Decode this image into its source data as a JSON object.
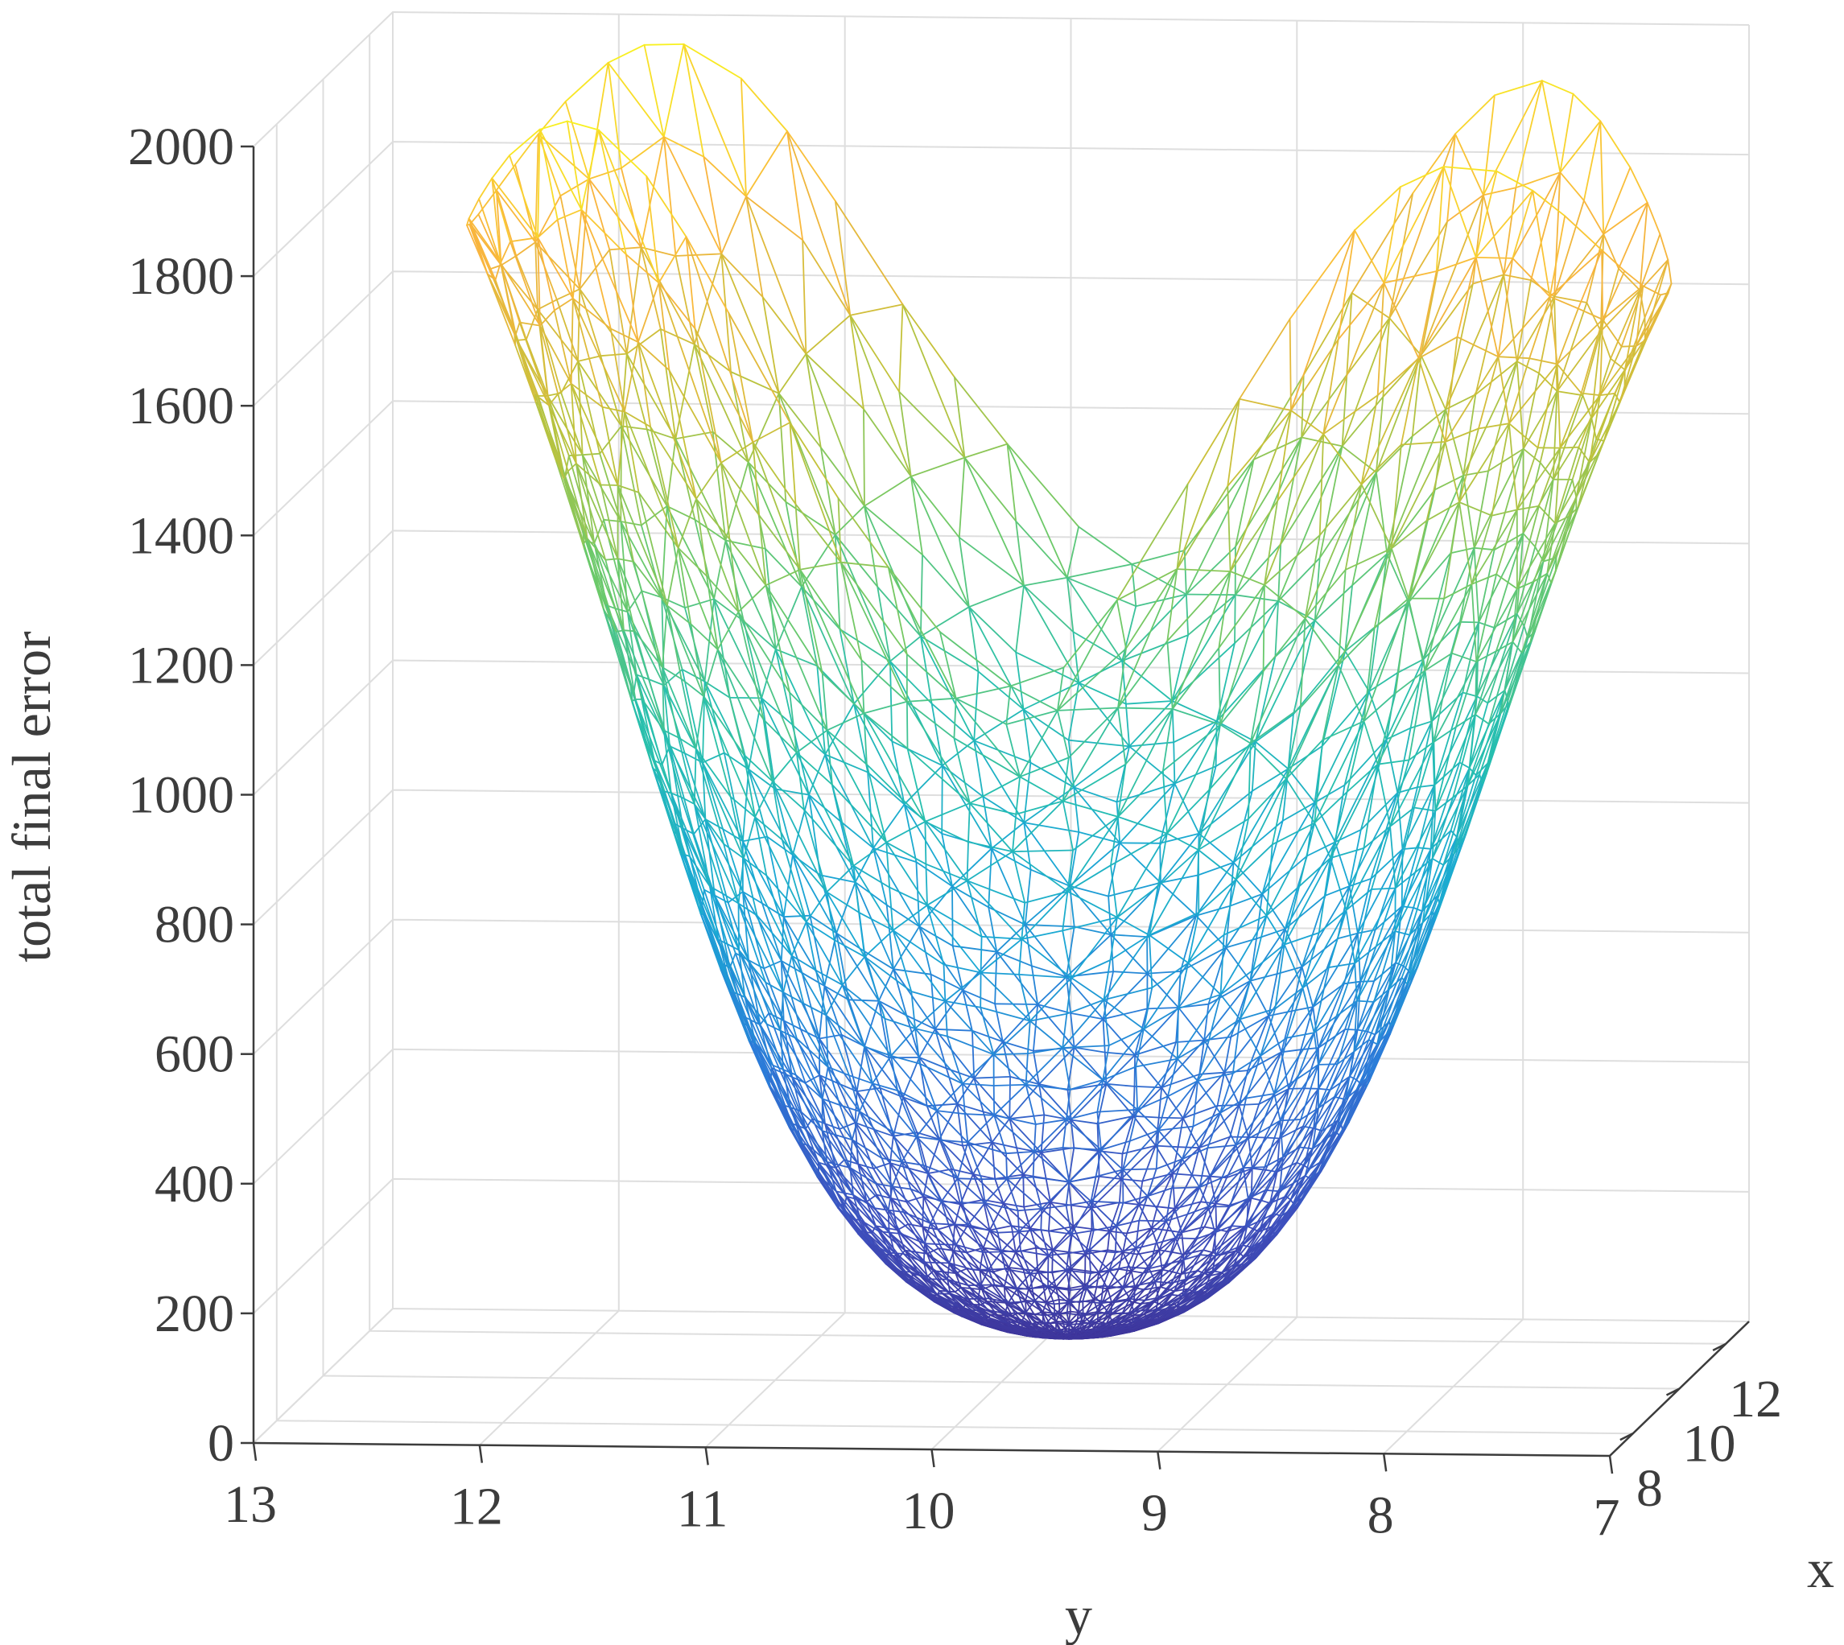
{
  "chart_data": {
    "type": "surface-mesh",
    "title": "",
    "xlabel": "x",
    "ylabel": "y",
    "zlabel": "total final error",
    "x_ticks": [
      8,
      10,
      12
    ],
    "y_ticks": [
      13,
      12,
      11,
      10,
      9,
      8,
      7
    ],
    "z_ticks": [
      0,
      200,
      400,
      600,
      800,
      1000,
      1200,
      1400,
      1600,
      1800,
      2000
    ],
    "xlim": [
      7,
      13
    ],
    "ylim": [
      7,
      13
    ],
    "zlim": [
      0,
      2000
    ],
    "grid": true,
    "colormap": [
      "#3e2a8c",
      "#3d4fbd",
      "#2b7bd8",
      "#1aa8d4",
      "#27bfae",
      "#6cc96a",
      "#c2c23a",
      "#f9b43e",
      "#f8f21f"
    ],
    "surface": {
      "shape": "double-lobed funnel",
      "minimum": {
        "x": 10,
        "y": 9.7,
        "z": 70
      },
      "left_lobe_peak": {
        "x": 10,
        "y": 11.7,
        "z": 2000
      },
      "right_lobe_peak": {
        "x": 10,
        "y": 7.8,
        "z": 1950
      },
      "saddle": {
        "x": 10,
        "y": 9.6,
        "z": 1420
      },
      "rim_min_z": 1250
    }
  }
}
